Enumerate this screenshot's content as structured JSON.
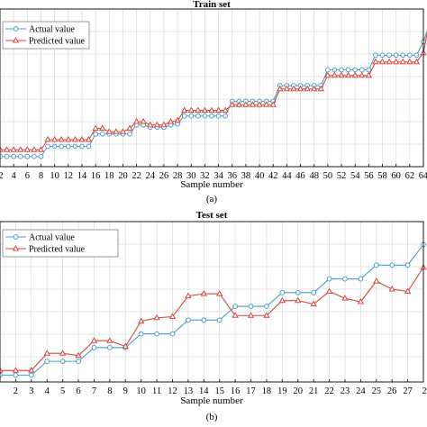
{
  "chart_data": [
    {
      "type": "line",
      "title": "Train set",
      "xlabel": "Sample number",
      "ylabel": "",
      "panel_label": "(a)",
      "xlim": [
        2,
        64
      ],
      "ylim": [
        0,
        14
      ],
      "xticks": [
        4,
        6,
        8,
        10,
        12,
        14,
        16,
        18,
        20,
        22,
        24,
        26,
        28,
        30,
        32,
        34,
        36,
        38,
        40,
        42,
        44,
        46,
        48,
        50,
        52,
        54,
        56,
        58,
        60,
        62,
        64
      ],
      "xtick_labels": [
        "4",
        "6",
        "8",
        "10",
        "12",
        "14",
        "16",
        "18",
        "20",
        "22",
        "24",
        "26",
        "28",
        "30",
        "32",
        "34",
        "36",
        "38",
        "40",
        "42",
        "44",
        "46",
        "48",
        "50",
        "52",
        "54",
        "56",
        "58",
        "60",
        "62",
        "64"
      ],
      "left_partial_tick_label": "2",
      "grid": true,
      "legend_position": "top-left",
      "x": [
        1,
        2,
        3,
        4,
        5,
        6,
        7,
        8,
        9,
        10,
        11,
        12,
        13,
        14,
        15,
        16,
        17,
        18,
        19,
        20,
        21,
        22,
        23,
        24,
        25,
        26,
        27,
        28,
        29,
        30,
        31,
        32,
        33,
        34,
        35,
        36,
        37,
        38,
        39,
        40,
        41,
        42,
        43,
        44,
        45,
        46,
        47,
        48,
        49,
        50,
        51,
        52,
        53,
        54,
        55,
        56,
        57,
        58,
        59,
        60,
        61,
        62,
        63,
        64,
        65
      ],
      "series": [
        {
          "name": "Actual value",
          "color": "#4aa0c8",
          "marker": "circle",
          "values": [
            0.9,
            0.9,
            0.9,
            0.9,
            0.9,
            0.9,
            0.9,
            0.9,
            1.8,
            1.8,
            1.8,
            1.8,
            1.8,
            1.8,
            1.8,
            2.9,
            2.9,
            2.9,
            2.9,
            2.9,
            2.9,
            3.7,
            3.7,
            3.5,
            3.5,
            3.5,
            3.7,
            3.8,
            4.5,
            4.5,
            4.5,
            4.5,
            4.5,
            4.5,
            4.5,
            5.8,
            5.8,
            5.8,
            5.8,
            5.8,
            5.8,
            5.8,
            7.2,
            7.2,
            7.2,
            7.2,
            7.2,
            7.2,
            7.2,
            8.6,
            8.6,
            8.6,
            8.6,
            8.6,
            8.6,
            8.6,
            9.9,
            9.9,
            9.9,
            9.9,
            9.9,
            9.9,
            9.9,
            11.1,
            12.8
          ]
        },
        {
          "name": "Predicted value",
          "color": "#d9453d",
          "marker": "triangle",
          "values": [
            1.5,
            1.5,
            1.5,
            1.5,
            1.5,
            1.5,
            1.5,
            1.5,
            2.4,
            2.4,
            2.4,
            2.4,
            2.4,
            2.4,
            2.4,
            3.4,
            3.4,
            3.1,
            3.1,
            3.1,
            3.4,
            4.0,
            4.0,
            3.7,
            3.7,
            3.7,
            4.0,
            4.1,
            5.0,
            5.0,
            5.0,
            5.0,
            5.0,
            5.0,
            5.0,
            5.5,
            5.5,
            5.5,
            5.5,
            5.5,
            5.5,
            5.5,
            6.9,
            6.9,
            6.9,
            6.9,
            6.9,
            6.9,
            6.9,
            8.1,
            8.1,
            8.1,
            8.1,
            8.1,
            8.1,
            8.1,
            9.3,
            9.3,
            9.3,
            9.3,
            9.3,
            9.3,
            9.3,
            10.1,
            13.3
          ]
        }
      ]
    },
    {
      "type": "line",
      "title": "Test set",
      "xlabel": "Sample number",
      "ylabel": "",
      "panel_label": "(b)",
      "xlim": [
        1,
        28
      ],
      "ylim": [
        0,
        14
      ],
      "xticks": [
        2,
        3,
        4,
        5,
        6,
        7,
        8,
        9,
        10,
        11,
        12,
        13,
        14,
        15,
        16,
        17,
        18,
        19,
        20,
        21,
        22,
        23,
        24,
        25,
        26,
        27
      ],
      "xtick_labels": [
        "2",
        "3",
        "4",
        "5",
        "6",
        "7",
        "8",
        "9",
        "10",
        "11",
        "12",
        "13",
        "14",
        "15",
        "16",
        "17",
        "18",
        "19",
        "20",
        "21",
        "22",
        "23",
        "24",
        "25",
        "26",
        "27"
      ],
      "right_partial_tick_label": "2",
      "grid": true,
      "legend_position": "top-left",
      "x": [
        1,
        2,
        3,
        4,
        5,
        6,
        7,
        8,
        9,
        10,
        11,
        12,
        13,
        14,
        15,
        16,
        17,
        18,
        19,
        20,
        21,
        22,
        23,
        24,
        25,
        26,
        27,
        28
      ],
      "series": [
        {
          "name": "Actual value",
          "color": "#4aa0c8",
          "marker": "circle",
          "values": [
            0.6,
            0.6,
            0.6,
            1.8,
            1.8,
            1.8,
            3.0,
            3.0,
            3.0,
            4.2,
            4.2,
            4.2,
            5.4,
            5.4,
            5.4,
            6.6,
            6.6,
            6.6,
            7.8,
            7.8,
            7.8,
            9.0,
            9.0,
            9.0,
            10.2,
            10.2,
            10.2,
            12.0
          ]
        },
        {
          "name": "Predicted value",
          "color": "#d9453d",
          "marker": "triangle",
          "values": [
            1.0,
            1.0,
            1.0,
            2.5,
            2.5,
            2.3,
            3.6,
            3.6,
            3.1,
            5.3,
            5.6,
            5.7,
            7.5,
            7.7,
            7.7,
            5.8,
            5.8,
            5.8,
            7.1,
            7.1,
            6.8,
            7.9,
            7.3,
            7.0,
            8.8,
            8.1,
            7.9,
            10.0
          ]
        }
      ]
    }
  ]
}
